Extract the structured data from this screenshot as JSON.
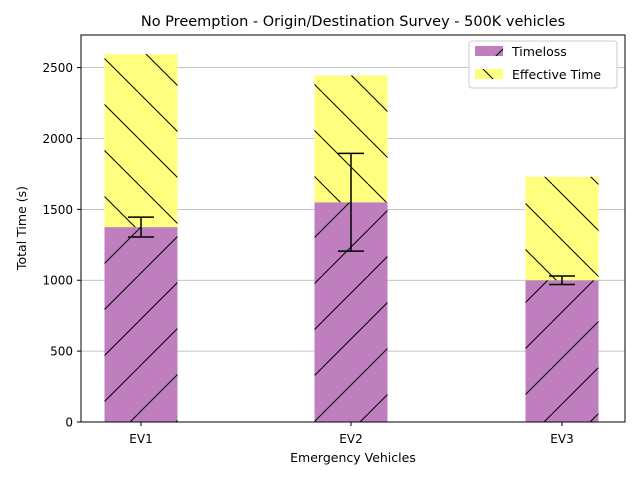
{
  "chart_data": {
    "type": "bar",
    "stacked": true,
    "title": "No Preemption - Origin/Destination Survey - 500K vehicles",
    "xlabel": "Emergency Vehicles",
    "ylabel": "Total Time (s)",
    "categories": [
      "EV1",
      "EV2",
      "EV3"
    ],
    "ylim": [
      0,
      2730
    ],
    "yticks": [
      0,
      500,
      1000,
      1500,
      2000,
      2500
    ],
    "grid": "horizontal",
    "legend_position": "top-right",
    "series": [
      {
        "name": "Timeloss",
        "values": [
          1375,
          1550,
          1000
        ],
        "color": "#bf7fbf",
        "hatch": "/",
        "error": [
          [
            1305,
            1445
          ],
          [
            1205,
            1895
          ],
          [
            970,
            1030
          ]
        ]
      },
      {
        "name": "Effective Time",
        "values": [
          1220,
          895,
          730
        ],
        "color": "#ffff7f",
        "hatch": "\\"
      }
    ]
  }
}
